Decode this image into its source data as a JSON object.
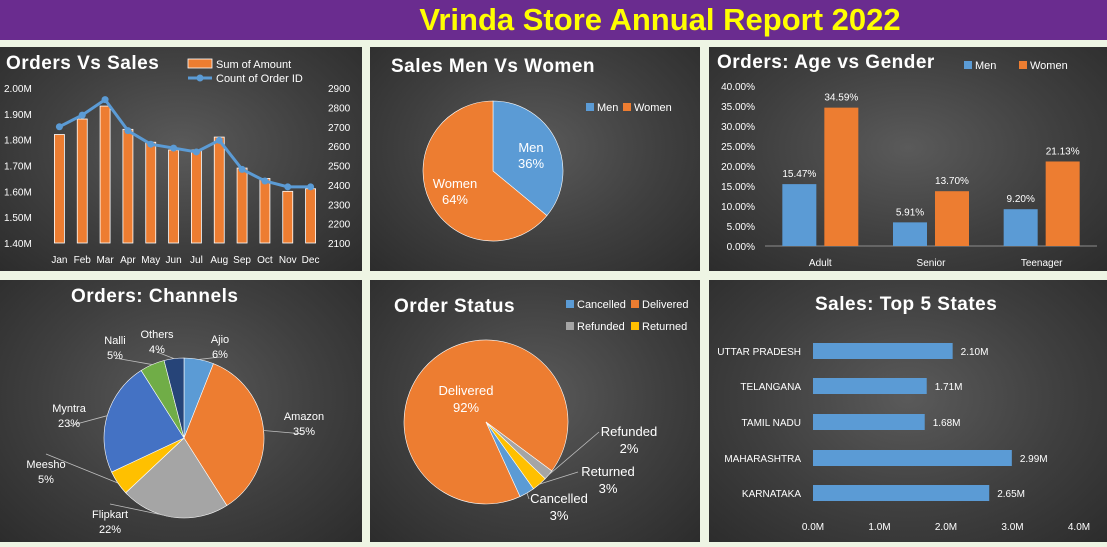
{
  "report_title": "Vrinda Store Annual Report 2022",
  "colors": {
    "banner": "#6a2c8f",
    "title": "#ffff00",
    "blue": "#5b9bd5",
    "orange": "#ed7d31",
    "gray": "#a5a5a5",
    "yellow": "#ffc000",
    "darkblue": "#4472c4",
    "green": "#70ad47",
    "navy": "#264478"
  },
  "chart_data": [
    {
      "id": "orders_vs_sales",
      "type": "bar",
      "title": "Orders Vs Sales",
      "categories": [
        "Jan",
        "Feb",
        "Mar",
        "Apr",
        "May",
        "Jun",
        "Jul",
        "Aug",
        "Sep",
        "Oct",
        "Nov",
        "Dec"
      ],
      "series": [
        {
          "name": "Sum of Amount",
          "type": "bar",
          "axis": "left",
          "values": [
            1.82,
            1.88,
            1.93,
            1.84,
            1.79,
            1.76,
            1.76,
            1.81,
            1.69,
            1.65,
            1.6,
            1.61
          ]
        },
        {
          "name": "Count of Order ID",
          "type": "line",
          "axis": "right",
          "values": [
            2700,
            2760,
            2840,
            2680,
            2610,
            2590,
            2570,
            2630,
            2480,
            2420,
            2390,
            2390
          ]
        }
      ],
      "ylim_left": [
        1.4,
        2.0
      ],
      "yticks_left": [
        "1.40M",
        "1.50M",
        "1.60M",
        "1.70M",
        "1.80M",
        "1.90M",
        "2.00M"
      ],
      "ylim_right": [
        2100,
        2900
      ],
      "yticks_right": [
        "2100",
        "2200",
        "2300",
        "2400",
        "2500",
        "2600",
        "2700",
        "2800",
        "2900"
      ],
      "legend": "top-right"
    },
    {
      "id": "sales_men_women",
      "type": "pie",
      "title": "Sales Men Vs Women",
      "labels": [
        "Men",
        "Women"
      ],
      "values": [
        36,
        64
      ],
      "display": [
        "36%",
        "64%"
      ],
      "legend": "top-right"
    },
    {
      "id": "age_gender",
      "type": "bar",
      "title": "Orders: Age vs Gender",
      "categories": [
        "Adult",
        "Senior",
        "Teenager"
      ],
      "series": [
        {
          "name": "Men",
          "values": [
            15.47,
            5.91,
            9.2
          ],
          "labels": [
            "15.47%",
            "5.91%",
            "9.20%"
          ]
        },
        {
          "name": "Women",
          "values": [
            34.59,
            13.7,
            21.13
          ],
          "labels": [
            "34.59%",
            "13.70%",
            "21.13%"
          ]
        }
      ],
      "ylim": [
        0,
        40
      ],
      "yticks": [
        "0.00%",
        "5.00%",
        "10.00%",
        "15.00%",
        "20.00%",
        "25.00%",
        "30.00%",
        "35.00%",
        "40.00%"
      ],
      "legend": "top"
    },
    {
      "id": "channels",
      "type": "pie",
      "title": "Orders: Channels",
      "labels": [
        "Ajio",
        "Amazon",
        "Flipkart",
        "Meesho",
        "Myntra",
        "Nalli",
        "Others"
      ],
      "values": [
        6,
        35,
        22,
        5,
        23,
        5,
        4
      ],
      "display": [
        "6%",
        "35%",
        "22%",
        "5%",
        "23%",
        "5%",
        "4%"
      ]
    },
    {
      "id": "order_status",
      "type": "pie",
      "title": "Order Status",
      "labels": [
        "Delivered",
        "Refunded",
        "Returned",
        "Cancelled"
      ],
      "values": [
        92,
        2,
        3,
        3
      ],
      "display": [
        "92%",
        "2%",
        "3%",
        "3%"
      ],
      "legend_labels": [
        "Cancelled",
        "Delivered",
        "Refunded",
        "Returned"
      ],
      "legend": "top-right"
    },
    {
      "id": "top_states",
      "type": "bar",
      "orientation": "horizontal",
      "title": "Sales: Top 5 States",
      "categories": [
        "UTTAR PRADESH",
        "TELANGANA",
        "TAMIL NADU",
        "MAHARASHTRA",
        "KARNATAKA"
      ],
      "values": [
        2.1,
        1.71,
        1.68,
        2.99,
        2.65
      ],
      "labels": [
        "2.10M",
        "1.71M",
        "1.68M",
        "2.99M",
        "2.65M"
      ],
      "xlim": [
        0,
        4
      ],
      "xticks": [
        "0.0M",
        "1.0M",
        "2.0M",
        "3.0M",
        "4.0M"
      ]
    }
  ]
}
